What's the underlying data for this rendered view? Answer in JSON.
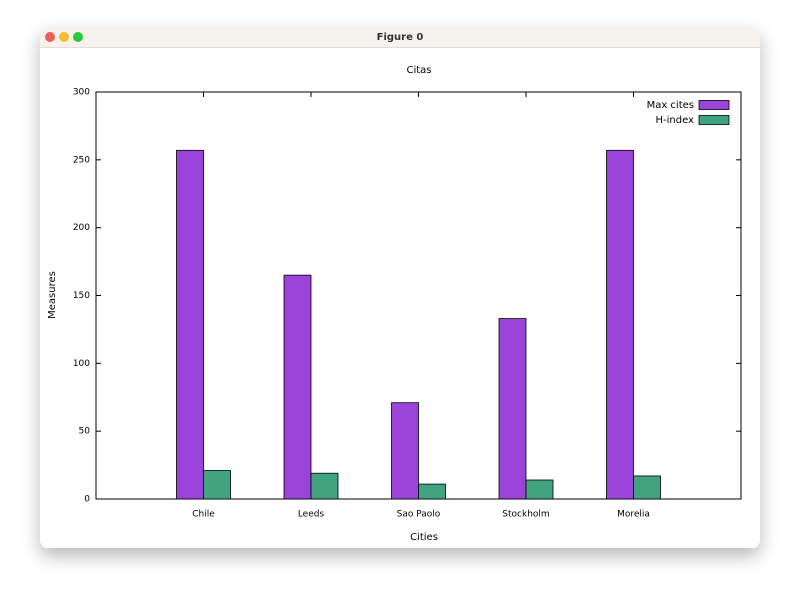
{
  "window": {
    "title": "Figure 0"
  },
  "chart_data": {
    "type": "bar",
    "title": "Citas",
    "x_label": "Cities",
    "y_label": "Measures",
    "categories": [
      "Chile",
      "Leeds",
      "Sao Paolo",
      "Stockholm",
      "Morelia"
    ],
    "series": [
      {
        "name": "Max cites",
        "color": "#9b44d9",
        "values": [
          257,
          165,
          71,
          133,
          257
        ]
      },
      {
        "name": "H-index",
        "color": "#41a37f",
        "values": [
          21,
          19,
          11,
          14,
          17
        ]
      }
    ],
    "ylim": [
      0,
      300
    ],
    "yticks": [
      0,
      50,
      100,
      150,
      200,
      250,
      300
    ],
    "grid": false,
    "legend": "top-right"
  }
}
